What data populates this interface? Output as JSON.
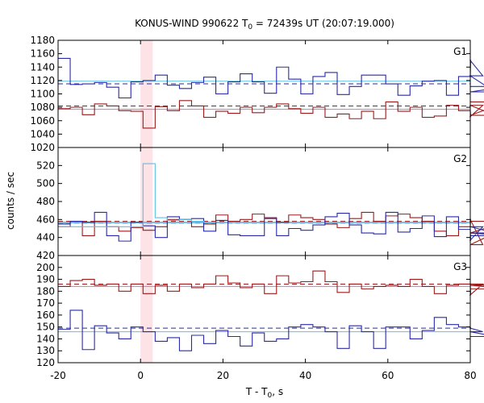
{
  "chart_data": {
    "type": "line",
    "title": "KONUS-WIND 990622 T",
    "title_sub": "0",
    "title_rest": " = 72439s UT (20:07:19.000)",
    "xlabel": "T - T",
    "xlabel_sub": "0",
    "xlabel_rest": ", s",
    "ylabel": "counts / sec",
    "xlim": [
      -20,
      80
    ],
    "xticks": [
      -20,
      0,
      20,
      40,
      60,
      80
    ],
    "highlight_interval": [
      0,
      2.944
    ],
    "colors": {
      "blue": "#2a2aa8",
      "red": "#9b1b1b",
      "cyan": "#5bc0e6",
      "pink": "#e070b8",
      "highlight": "#fde2e6"
    },
    "panels": [
      {
        "label": "G1",
        "ylim": [
          1020,
          1180
        ],
        "yticks": [
          1020,
          1040,
          1060,
          1080,
          1100,
          1120,
          1140,
          1160,
          1180
        ],
        "bin_start": -20,
        "bin_width": 2.944,
        "series": [
          {
            "color": "blue",
            "values": [
              1153,
              1114,
              1115,
              1117,
              1110,
              1094,
              1118,
              1120,
              1128,
              1113,
              1108,
              1117,
              1125,
              1100,
              1118,
              1130,
              1118,
              1101,
              1140,
              1122,
              1100,
              1126,
              1132,
              1099,
              1111,
              1128,
              1128,
              1115,
              1098,
              1112,
              1119,
              1120,
              1098,
              1126,
              1150,
              1127,
              1103,
              1111
            ]
          },
          {
            "color": "red",
            "values": [
              1078,
              1080,
              1069,
              1085,
              1082,
              1075,
              1074,
              1049,
              1081,
              1075,
              1090,
              1082,
              1065,
              1074,
              1071,
              1080,
              1072,
              1080,
              1085,
              1078,
              1071,
              1080,
              1065,
              1070,
              1063,
              1074,
              1063,
              1088,
              1074,
              1080,
              1065,
              1067,
              1083,
              1075,
              1066,
              1083,
              1068,
              1088
            ]
          }
        ],
        "reference_lines": [
          {
            "color": "blue",
            "value": 1115,
            "style": "dashed"
          },
          {
            "color": "cyan",
            "value": 1119,
            "style": "solid"
          },
          {
            "color": "red",
            "value": 1082,
            "style": "dashed"
          },
          {
            "color": "pink",
            "value": 1077,
            "style": "solid"
          }
        ]
      },
      {
        "label": "G2",
        "ylim": [
          420,
          540
        ],
        "yticks": [
          420,
          440,
          460,
          480,
          500,
          520
        ],
        "bin_start": -20,
        "bin_width": 2.944,
        "series": [
          {
            "color": "red",
            "values": [
              452,
              458,
              442,
              458,
              452,
              447,
              451,
              448,
              452,
              460,
              460,
              452,
              455,
              465,
              458,
              460,
              466,
              462,
              457,
              465,
              462,
              460,
              455,
              451,
              461,
              468,
              458,
              464,
              466,
              462,
              458,
              447,
              442,
              452,
              460,
              432,
              445,
              458
            ]
          },
          {
            "color": "blue",
            "values": [
              455,
              458,
              457,
              468,
              442,
              436,
              457,
              453,
              440,
              463,
              460,
              461,
              447,
              459,
              443,
              442,
              442,
              461,
              442,
              450,
              448,
              454,
              463,
              467,
              454,
              445,
              444,
              468,
              446,
              450,
              464,
              441,
              463,
              449,
              437,
              452,
              445,
              442
            ]
          },
          {
            "color": "cyan",
            "values": [
              452,
              452,
              452,
              452,
              452,
              452,
              452,
              522,
              462,
              459,
              460,
              458,
              457
            ]
          }
        ],
        "reference_lines": [
          {
            "color": "blue",
            "value": 456,
            "style": "dashed"
          },
          {
            "color": "cyan",
            "value": 456,
            "style": "solid"
          },
          {
            "color": "red",
            "value": 458,
            "style": "dashed"
          },
          {
            "color": "pink",
            "value": 457,
            "style": "solid"
          }
        ]
      },
      {
        "label": "G3",
        "ylim": [
          120,
          210
        ],
        "yticks": [
          120,
          130,
          140,
          150,
          160,
          170,
          180,
          190,
          200
        ],
        "bin_start": -20,
        "bin_width": 2.944,
        "series": [
          {
            "color": "red",
            "values": [
              184,
              189,
              190,
              185,
              186,
              180,
              186,
              178,
              185,
              180,
              186,
              183,
              186,
              193,
              187,
              183,
              186,
              178,
              193,
              187,
              188,
              197,
              188,
              179,
              186,
              182,
              184,
              185,
              184,
              190,
              184,
              178,
              185,
              186,
              177,
              186,
              185,
              182
            ]
          },
          {
            "color": "blue",
            "values": [
              148,
              164,
              131,
              151,
              145,
              140,
              150,
              146,
              138,
              141,
              130,
              143,
              136,
              147,
              142,
              134,
              145,
              138,
              140,
              150,
              152,
              150,
              146,
              132,
              151,
              146,
              132,
              150,
              150,
              140,
              147,
              158,
              152,
              150,
              149,
              146,
              142,
              142
            ]
          }
        ],
        "reference_lines": [
          {
            "color": "blue",
            "value": 149,
            "style": "dashed"
          },
          {
            "color": "cyan",
            "value": 146,
            "style": "solid"
          },
          {
            "color": "red",
            "value": 186,
            "style": "dashed"
          },
          {
            "color": "pink",
            "value": 184,
            "style": "solid"
          }
        ]
      }
    ]
  }
}
